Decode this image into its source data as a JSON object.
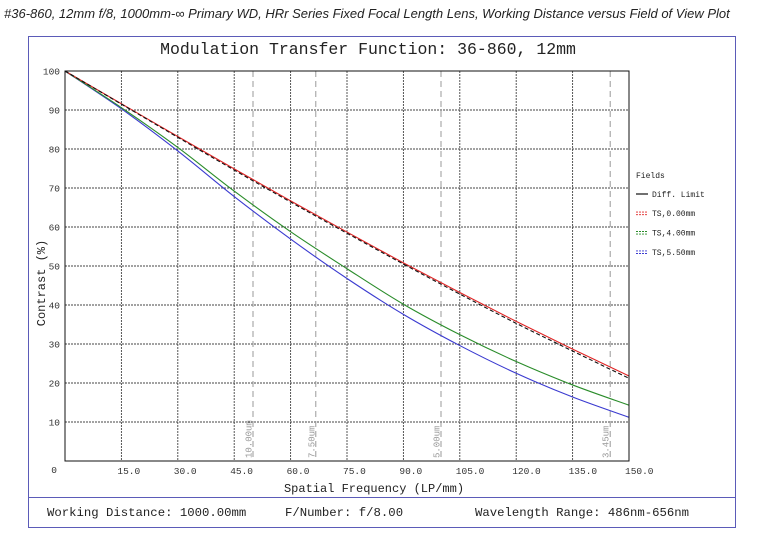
{
  "caption": "#36-860, 12mm f/8, 1000mm-∞ Primary WD, HRr Series Fixed Focal Length Lens, Working Distance versus Field of View Plot",
  "colors": {
    "frame": "#5b5bb8"
  },
  "chart_data": {
    "type": "line",
    "title": "Modulation Transfer Function: 36-860, 12mm",
    "xlabel": "Spatial Frequency (LP/mm)",
    "ylabel": "Contrast (%)",
    "xlim": [
      0,
      150
    ],
    "ylim": [
      0,
      100
    ],
    "x_ticks": [
      "15.0",
      "30.0",
      "45.0",
      "60.0",
      "75.0",
      "90.0",
      "105.0",
      "120.0",
      "135.0",
      "150.0"
    ],
    "y_ticks": [
      "0",
      "10",
      "20",
      "30",
      "40",
      "50",
      "60",
      "70",
      "80",
      "90",
      "100"
    ],
    "grid": true,
    "legend": {
      "title": "Fields",
      "position": "right"
    },
    "x": [
      0,
      15,
      30,
      45,
      60,
      75,
      90,
      105,
      120,
      135,
      150
    ],
    "series": [
      {
        "name": "Diff. Limit",
        "color": "#111111",
        "dashed": true,
        "values": [
          100,
          91.5,
          83.0,
          74.6,
          66.4,
          58.4,
          50.5,
          42.8,
          35.3,
          28.2,
          21.2
        ]
      },
      {
        "name": "TS,0.00mm",
        "color": "#e02424",
        "values": [
          100,
          91.6,
          83.2,
          74.9,
          66.7,
          58.7,
          50.8,
          43.2,
          35.8,
          28.7,
          21.8
        ]
      },
      {
        "name": "TS,4.00mm",
        "color": "#2a8c2a",
        "values": [
          100,
          90.6,
          80.4,
          69.2,
          58.8,
          49.3,
          40.2,
          32.4,
          25.5,
          19.5,
          14.3
        ]
      },
      {
        "name": "TS,5.50mm",
        "color": "#3a3ad0",
        "values": [
          100,
          90.3,
          79.5,
          67.8,
          56.9,
          46.8,
          37.6,
          29.6,
          22.5,
          16.4,
          11.2
        ]
      }
    ],
    "reference_lines": [
      {
        "x": 50,
        "label": "10.00um"
      },
      {
        "x": 66.7,
        "label": "7.50um"
      },
      {
        "x": 100,
        "label": "5.00um"
      },
      {
        "x": 145,
        "label": "3.45um"
      }
    ]
  },
  "info": {
    "working_distance": "Working Distance: 1000.00mm",
    "f_number": "F/Number: f/8.00",
    "wavelength_range": "Wavelength Range: 486nm-656nm"
  }
}
